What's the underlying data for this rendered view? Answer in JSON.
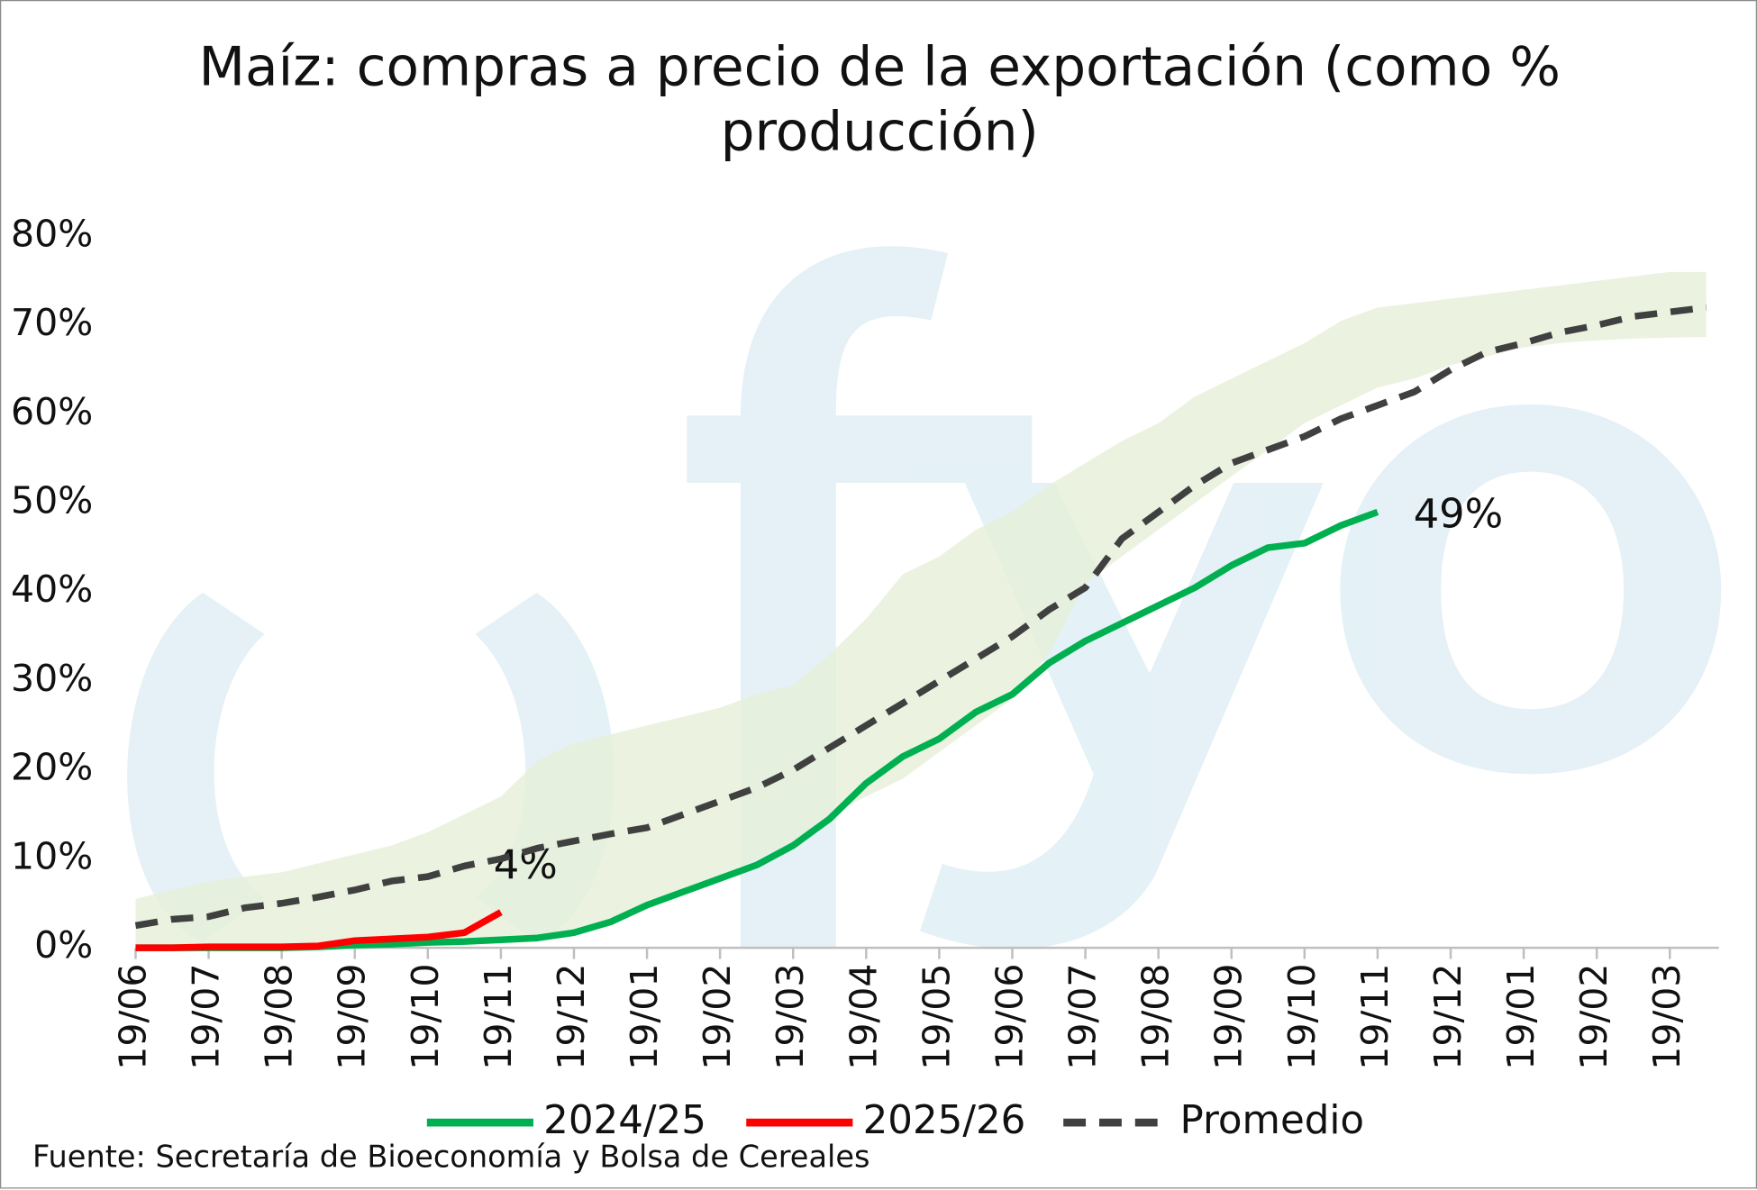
{
  "chart_data": {
    "type": "line",
    "title": "Maíz: compras a precio de la exportación (como % producción)",
    "source": "Fuente: Secretaría de Bioeconomía y Bolsa de Cereales",
    "categories": [
      "19/06",
      null,
      "19/07",
      null,
      "19/08",
      null,
      "19/09",
      null,
      "19/10",
      null,
      "19/11",
      null,
      "19/12",
      null,
      "19/01",
      null,
      "19/02",
      null,
      "19/03",
      null,
      "19/04",
      null,
      "19/05",
      null,
      "19/06",
      null,
      "19/07",
      null,
      "19/08",
      null,
      "19/09",
      null,
      "19/10",
      null,
      "19/11",
      null,
      "19/12",
      null,
      "19/01",
      null,
      "19/02",
      null,
      "19/03",
      null
    ],
    "ylim": [
      0,
      80
    ],
    "yticks": [
      {
        "value": 0,
        "label": "0%"
      },
      {
        "value": 10,
        "label": "10%"
      },
      {
        "value": 20,
        "label": "20%"
      },
      {
        "value": 30,
        "label": "30%"
      },
      {
        "value": 40,
        "label": "40%"
      },
      {
        "value": 50,
        "label": "50%"
      },
      {
        "value": 60,
        "label": "60%"
      },
      {
        "value": 70,
        "label": "70%"
      },
      {
        "value": 80,
        "label": "80%"
      }
    ],
    "grid": false,
    "legend": "bottom",
    "band": {
      "color": "#e6f0d8",
      "lower": [
        0,
        0,
        0,
        0,
        0,
        0,
        0,
        0.2,
        0.4,
        0.6,
        0.8,
        1,
        1.5,
        2.5,
        4.5,
        6.5,
        8,
        10,
        12,
        15,
        17,
        19,
        22,
        25,
        28,
        33,
        41,
        44,
        47,
        50,
        53,
        56,
        59,
        61,
        63,
        64,
        65.5,
        66.5,
        67.5,
        68,
        68.3,
        68.5,
        68.6,
        68.7
      ],
      "upper": [
        5.5,
        6.5,
        7.5,
        8,
        8.5,
        9.5,
        10.5,
        11.5,
        13,
        15,
        17,
        21,
        23,
        24,
        25,
        26,
        27,
        28.5,
        29.5,
        33,
        37,
        42,
        44,
        47,
        49,
        52,
        54.5,
        57,
        59,
        62,
        64,
        66,
        68,
        70.5,
        72,
        72.5,
        73,
        73.5,
        74,
        74.5,
        75,
        75.5,
        76,
        76
      ]
    },
    "series": [
      {
        "name": "2024/25",
        "color": "#00b050",
        "style": "solid",
        "values": [
          0,
          0,
          0,
          0,
          0,
          0.1,
          0.3,
          0.4,
          0.6,
          0.7,
          0.9,
          1.1,
          1.7,
          2.9,
          4.8,
          6.3,
          7.8,
          9.3,
          11.5,
          14.5,
          18.5,
          21.5,
          23.5,
          26.5,
          28.5,
          32,
          34.5,
          36.5,
          38.5,
          40.5,
          43,
          45,
          45.5,
          47.5,
          49,
          null,
          null,
          null,
          null,
          null,
          null,
          null,
          null,
          null
        ],
        "value_labels": [
          null,
          null,
          null,
          null,
          null,
          null,
          null,
          null,
          null,
          null,
          null,
          null,
          null,
          null,
          null,
          null,
          null,
          null,
          null,
          null,
          null,
          null,
          null,
          null,
          null,
          null,
          null,
          null,
          null,
          null,
          null,
          null,
          null,
          null,
          "49%",
          null,
          null,
          null,
          null,
          null,
          null,
          null,
          null,
          null
        ]
      },
      {
        "name": "2025/26",
        "color": "#ff0000",
        "style": "solid",
        "values": [
          0,
          0,
          0.1,
          0.1,
          0.1,
          0.2,
          0.8,
          1.0,
          1.2,
          1.7,
          4,
          null,
          null,
          null,
          null,
          null,
          null,
          null,
          null,
          null,
          null,
          null,
          null,
          null,
          null,
          null,
          null,
          null,
          null,
          null,
          null,
          null,
          null,
          null,
          null,
          null,
          null,
          null,
          null,
          null,
          null,
          null,
          null,
          null
        ],
        "value_labels": [
          null,
          null,
          null,
          null,
          null,
          null,
          null,
          null,
          null,
          null,
          "4%",
          null,
          null,
          null,
          null,
          null,
          null,
          null,
          null,
          null,
          null,
          null,
          null,
          null,
          null,
          null,
          null,
          null,
          null,
          null,
          null,
          null,
          null,
          null,
          null,
          null,
          null,
          null,
          null,
          null,
          null,
          null,
          null,
          null
        ]
      },
      {
        "name": "Promedio",
        "color": "#404040",
        "style": "dashed",
        "values": [
          2.5,
          3.2,
          3.5,
          4.5,
          5,
          5.7,
          6.5,
          7.5,
          8,
          9.2,
          10,
          11.2,
          12,
          12.8,
          13.5,
          15,
          16.5,
          18,
          20,
          22.5,
          25,
          27.5,
          30,
          32.5,
          35,
          38,
          40.5,
          46,
          49,
          52,
          54.5,
          56,
          57.5,
          59.5,
          61,
          62.5,
          65,
          67,
          68,
          69.2,
          70,
          71,
          71.5,
          72
        ]
      }
    ]
  }
}
